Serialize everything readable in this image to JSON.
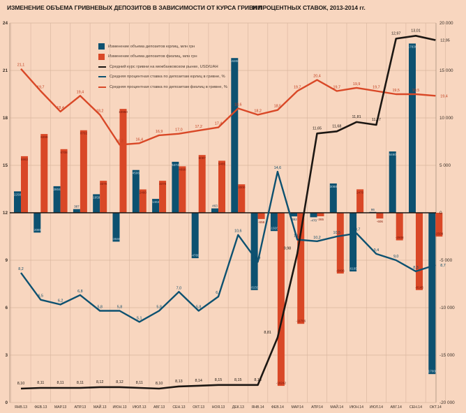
{
  "title": {
    "left": "ИЗМЕНЕНИЕ ОБЪЕМА ГРИВНЕВЫХ ДЕПОЗИТОВ В ЗАВИСИМОСТИ ОТ КУРСА ГРИВНИ",
    "right": "И ПРОЦЕНТНЫХ СТАВОК, 2013-2014 гг."
  },
  "colors": {
    "background": "#f8d6bf",
    "grid": "#d8b49e",
    "axis_frame": "#a98f7d",
    "baseline": "#1c1713",
    "bar_corporate": "#0d5170",
    "bar_retail": "#d94827",
    "line_usd": "#1c1713",
    "line_corporate_rate": "#0d5170",
    "line_retail_rate": "#d94827",
    "label_on_blue": "#c7dae3",
    "label_on_red": "#73150a",
    "label_outside_blue": "#15405c",
    "label_outside_red": "#8a2110",
    "axis_text": "#3a3028"
  },
  "chart_data": {
    "type": "bar",
    "subtype": "combo-bar-line-dual-axis",
    "categories": [
      "ЯНВ.13",
      "ФЕВ.13",
      "МАР.13",
      "АПР.13",
      "МАЙ.13",
      "ИЮН.13",
      "ИЮЛ.13",
      "АВГ.13",
      "СЕН.13",
      "ОКТ.13",
      "НОЯ.13",
      "ДЕК.13",
      "ЯНВ.14",
      "ФЕВ.14",
      "МАР.14",
      "АПР.14",
      "МАЙ.14",
      "ИЮН.14",
      "ИЮЛ.14",
      "АВГ.14",
      "СЕН.14",
      "ОКТ.14"
    ],
    "left_axis": {
      "title": "",
      "ticks": [
        0,
        3,
        6,
        9,
        12,
        15,
        18,
        21,
        24
      ],
      "labels": [
        "0",
        "3",
        "6",
        "9",
        "12",
        "15",
        "18",
        "21",
        "24"
      ],
      "range": [
        0,
        24
      ]
    },
    "right_axis": {
      "title": "",
      "ticks": [
        -20000,
        -15000,
        -10000,
        -5000,
        0,
        5000,
        10000,
        15000,
        20000
      ],
      "labels": [
        "-20 000",
        "-15 000",
        "-10 000",
        "-5 000",
        "0",
        "5 000",
        "10 000",
        "15 000",
        "20 000"
      ],
      "range": [
        -20000,
        20000
      ]
    },
    "legend_position": "top-left-inside",
    "grid": true,
    "series": [
      {
        "name": "Изменение объема депозитов юрлиц, млн грн",
        "type": "bar",
        "axis": "right",
        "values": [
          2258,
          -2085,
          2804,
          387,
          1959,
          -3046,
          4506,
          1463,
          5374,
          -4789,
          463,
          16306,
          -8150,
          -1926,
          -382,
          -470,
          3088,
          -6185,
          86,
          6460,
          17836,
          -17000
        ],
        "labels": [
          "2258",
          "-2085",
          "2804",
          "387",
          "1959",
          "-3046",
          "4506",
          "1463",
          "5374",
          "-4789",
          "463",
          "16306",
          "-8150",
          "-1926",
          "-382",
          "-470",
          "3088",
          "-6185",
          "86",
          "6460",
          "17836",
          "-17000"
        ]
      },
      {
        "name": "Изменение объема депозитов физлиц, млн грн",
        "type": "bar",
        "axis": "right",
        "values": [
          5963,
          8299,
          6708,
          8702,
          3378,
          10950,
          2460,
          3378,
          4898,
          6087,
          5485,
          3000,
          -658,
          -18242,
          -11706,
          -365,
          -6406,
          2470,
          -606,
          -2908,
          -8145,
          -2508
        ],
        "labels": [
          "5963",
          "8299",
          "6708",
          "8702",
          "3378",
          "10950",
          "2460",
          "3378",
          "4898",
          "6087",
          "5485",
          "3000",
          "-658",
          "-18242",
          "-11706",
          "-365",
          "-6406",
          "2470",
          "-606",
          "-2908",
          "-8145",
          "-2508"
        ]
      },
      {
        "name": "Средний курс гривни на межбанковском рынке, USD/UAH",
        "type": "line",
        "axis": "usd",
        "values": [
          8.1,
          8.11,
          8.11,
          8.11,
          8.12,
          8.12,
          8.11,
          8.1,
          8.13,
          8.14,
          8.15,
          8.15,
          8.15,
          8.81,
          9.98,
          11.65,
          11.68,
          11.81,
          11.77,
          12.97,
          13.01,
          12.95
        ],
        "labels": [
          "8,10",
          "8,11",
          "8,11",
          "8,11",
          "8,12",
          "8,12",
          "8,11",
          "8,10",
          "8,13",
          "8,14",
          "8,15",
          "8,15",
          "8,15",
          "8,81",
          "9,98",
          "11,65",
          "11,68",
          "11,81",
          "11,77",
          "12,97",
          "13,01",
          "12,95"
        ]
      },
      {
        "name": "Средняя процентная ставка по депозитам юрлиц в гривне, %",
        "type": "line",
        "axis": "left",
        "values": [
          8.2,
          6.5,
          6.2,
          6.8,
          5.8,
          5.8,
          5.1,
          5.8,
          7.0,
          5.8,
          6.7,
          10.6,
          8.9,
          14.6,
          10.3,
          10.2,
          10.5,
          10.7,
          9.4,
          9.0,
          8.3,
          8.7
        ],
        "labels": [
          "8,2",
          "6,5",
          "6,2",
          "6,8",
          "5,8",
          "5,8",
          "5,1",
          "5,8",
          "7,0",
          "5,8",
          "6,7",
          "10,6",
          "8,9",
          "14,6",
          "10,3",
          "10,2",
          "10,5",
          "10,7",
          "9,4",
          "9,0",
          "8,3",
          "8,7"
        ]
      },
      {
        "name": "Средняя процентная ставка по депозитам физлиц в гривне, %",
        "type": "line",
        "axis": "left",
        "values": [
          21.1,
          19.7,
          18.4,
          19.4,
          18.2,
          16.3,
          16.4,
          16.9,
          17.0,
          17.2,
          17.4,
          18.6,
          18.2,
          18.5,
          19.7,
          20.4,
          19.7,
          19.9,
          19.7,
          19.5,
          19.5,
          19.4
        ],
        "labels": [
          "21,1",
          "19,7",
          "18,4",
          "19,4",
          "18,2",
          "16,3",
          "16,4",
          "16,9",
          "17,0",
          "17,2",
          "17,4",
          "18,6",
          "18,2",
          "18,5",
          "19,7",
          "20,4",
          "19,7",
          "19,9",
          "19,7",
          "19,5",
          "19,5",
          "19,4"
        ]
      }
    ]
  }
}
